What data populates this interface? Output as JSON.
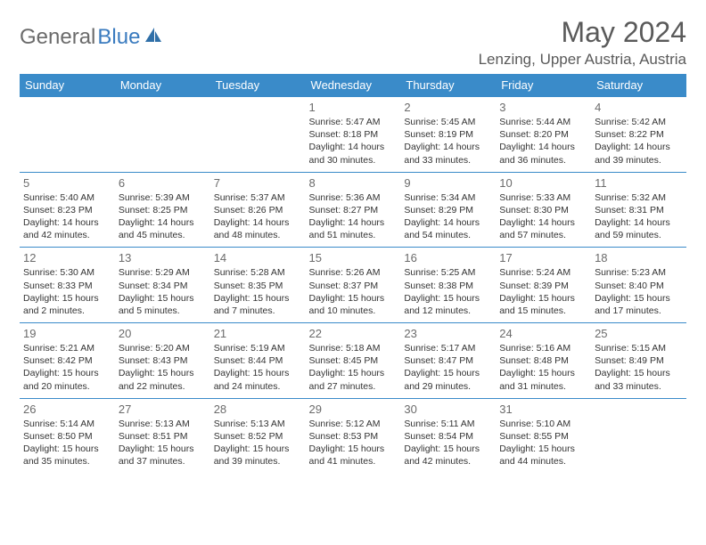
{
  "brand": {
    "part1": "General",
    "part2": "Blue"
  },
  "title": "May 2024",
  "location": "Lenzing, Upper Austria, Austria",
  "colors": {
    "header_bg": "#3a8bc9",
    "header_fg": "#ffffff",
    "rule": "#3a8bc9",
    "text": "#333333",
    "muted": "#5a5a5a",
    "brand_gray": "#6b6b6b",
    "brand_blue": "#3a7bbf"
  },
  "day_labels": [
    "Sunday",
    "Monday",
    "Tuesday",
    "Wednesday",
    "Thursday",
    "Friday",
    "Saturday"
  ],
  "weeks": [
    [
      null,
      null,
      null,
      {
        "n": "1",
        "sr": "Sunrise: 5:47 AM",
        "ss": "Sunset: 8:18 PM",
        "d1": "Daylight: 14 hours",
        "d2": "and 30 minutes."
      },
      {
        "n": "2",
        "sr": "Sunrise: 5:45 AM",
        "ss": "Sunset: 8:19 PM",
        "d1": "Daylight: 14 hours",
        "d2": "and 33 minutes."
      },
      {
        "n": "3",
        "sr": "Sunrise: 5:44 AM",
        "ss": "Sunset: 8:20 PM",
        "d1": "Daylight: 14 hours",
        "d2": "and 36 minutes."
      },
      {
        "n": "4",
        "sr": "Sunrise: 5:42 AM",
        "ss": "Sunset: 8:22 PM",
        "d1": "Daylight: 14 hours",
        "d2": "and 39 minutes."
      }
    ],
    [
      {
        "n": "5",
        "sr": "Sunrise: 5:40 AM",
        "ss": "Sunset: 8:23 PM",
        "d1": "Daylight: 14 hours",
        "d2": "and 42 minutes."
      },
      {
        "n": "6",
        "sr": "Sunrise: 5:39 AM",
        "ss": "Sunset: 8:25 PM",
        "d1": "Daylight: 14 hours",
        "d2": "and 45 minutes."
      },
      {
        "n": "7",
        "sr": "Sunrise: 5:37 AM",
        "ss": "Sunset: 8:26 PM",
        "d1": "Daylight: 14 hours",
        "d2": "and 48 minutes."
      },
      {
        "n": "8",
        "sr": "Sunrise: 5:36 AM",
        "ss": "Sunset: 8:27 PM",
        "d1": "Daylight: 14 hours",
        "d2": "and 51 minutes."
      },
      {
        "n": "9",
        "sr": "Sunrise: 5:34 AM",
        "ss": "Sunset: 8:29 PM",
        "d1": "Daylight: 14 hours",
        "d2": "and 54 minutes."
      },
      {
        "n": "10",
        "sr": "Sunrise: 5:33 AM",
        "ss": "Sunset: 8:30 PM",
        "d1": "Daylight: 14 hours",
        "d2": "and 57 minutes."
      },
      {
        "n": "11",
        "sr": "Sunrise: 5:32 AM",
        "ss": "Sunset: 8:31 PM",
        "d1": "Daylight: 14 hours",
        "d2": "and 59 minutes."
      }
    ],
    [
      {
        "n": "12",
        "sr": "Sunrise: 5:30 AM",
        "ss": "Sunset: 8:33 PM",
        "d1": "Daylight: 15 hours",
        "d2": "and 2 minutes."
      },
      {
        "n": "13",
        "sr": "Sunrise: 5:29 AM",
        "ss": "Sunset: 8:34 PM",
        "d1": "Daylight: 15 hours",
        "d2": "and 5 minutes."
      },
      {
        "n": "14",
        "sr": "Sunrise: 5:28 AM",
        "ss": "Sunset: 8:35 PM",
        "d1": "Daylight: 15 hours",
        "d2": "and 7 minutes."
      },
      {
        "n": "15",
        "sr": "Sunrise: 5:26 AM",
        "ss": "Sunset: 8:37 PM",
        "d1": "Daylight: 15 hours",
        "d2": "and 10 minutes."
      },
      {
        "n": "16",
        "sr": "Sunrise: 5:25 AM",
        "ss": "Sunset: 8:38 PM",
        "d1": "Daylight: 15 hours",
        "d2": "and 12 minutes."
      },
      {
        "n": "17",
        "sr": "Sunrise: 5:24 AM",
        "ss": "Sunset: 8:39 PM",
        "d1": "Daylight: 15 hours",
        "d2": "and 15 minutes."
      },
      {
        "n": "18",
        "sr": "Sunrise: 5:23 AM",
        "ss": "Sunset: 8:40 PM",
        "d1": "Daylight: 15 hours",
        "d2": "and 17 minutes."
      }
    ],
    [
      {
        "n": "19",
        "sr": "Sunrise: 5:21 AM",
        "ss": "Sunset: 8:42 PM",
        "d1": "Daylight: 15 hours",
        "d2": "and 20 minutes."
      },
      {
        "n": "20",
        "sr": "Sunrise: 5:20 AM",
        "ss": "Sunset: 8:43 PM",
        "d1": "Daylight: 15 hours",
        "d2": "and 22 minutes."
      },
      {
        "n": "21",
        "sr": "Sunrise: 5:19 AM",
        "ss": "Sunset: 8:44 PM",
        "d1": "Daylight: 15 hours",
        "d2": "and 24 minutes."
      },
      {
        "n": "22",
        "sr": "Sunrise: 5:18 AM",
        "ss": "Sunset: 8:45 PM",
        "d1": "Daylight: 15 hours",
        "d2": "and 27 minutes."
      },
      {
        "n": "23",
        "sr": "Sunrise: 5:17 AM",
        "ss": "Sunset: 8:47 PM",
        "d1": "Daylight: 15 hours",
        "d2": "and 29 minutes."
      },
      {
        "n": "24",
        "sr": "Sunrise: 5:16 AM",
        "ss": "Sunset: 8:48 PM",
        "d1": "Daylight: 15 hours",
        "d2": "and 31 minutes."
      },
      {
        "n": "25",
        "sr": "Sunrise: 5:15 AM",
        "ss": "Sunset: 8:49 PM",
        "d1": "Daylight: 15 hours",
        "d2": "and 33 minutes."
      }
    ],
    [
      {
        "n": "26",
        "sr": "Sunrise: 5:14 AM",
        "ss": "Sunset: 8:50 PM",
        "d1": "Daylight: 15 hours",
        "d2": "and 35 minutes."
      },
      {
        "n": "27",
        "sr": "Sunrise: 5:13 AM",
        "ss": "Sunset: 8:51 PM",
        "d1": "Daylight: 15 hours",
        "d2": "and 37 minutes."
      },
      {
        "n": "28",
        "sr": "Sunrise: 5:13 AM",
        "ss": "Sunset: 8:52 PM",
        "d1": "Daylight: 15 hours",
        "d2": "and 39 minutes."
      },
      {
        "n": "29",
        "sr": "Sunrise: 5:12 AM",
        "ss": "Sunset: 8:53 PM",
        "d1": "Daylight: 15 hours",
        "d2": "and 41 minutes."
      },
      {
        "n": "30",
        "sr": "Sunrise: 5:11 AM",
        "ss": "Sunset: 8:54 PM",
        "d1": "Daylight: 15 hours",
        "d2": "and 42 minutes."
      },
      {
        "n": "31",
        "sr": "Sunrise: 5:10 AM",
        "ss": "Sunset: 8:55 PM",
        "d1": "Daylight: 15 hours",
        "d2": "and 44 minutes."
      },
      null
    ]
  ]
}
